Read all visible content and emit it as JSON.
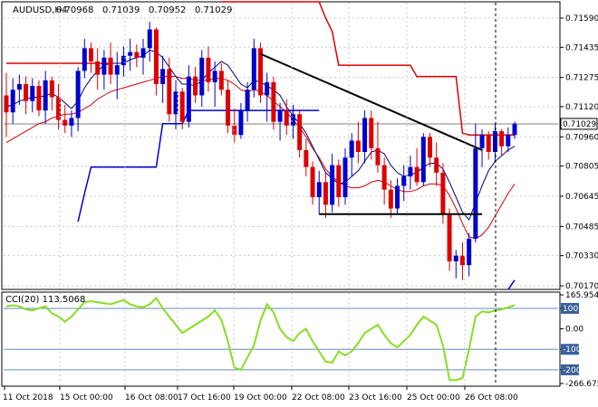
{
  "chart_data": [
    {
      "type": "candlestick",
      "title": "AUDUSD,H4",
      "ohlc_readout": [
        "0.70968",
        "0.71039",
        "0.70952",
        "0.71029"
      ],
      "last_price": "0.71029",
      "ylim": [
        0.7017,
        0.7159
      ],
      "y_ticks": [
        "0.71590",
        "0.71435",
        "0.71275",
        "0.71120",
        "0.70960",
        "0.70805",
        "0.70645",
        "0.70485",
        "0.70330",
        "0.70170"
      ],
      "x_ticks": [
        "11 Oct 2018",
        "15 Oct 00:00",
        "16 Oct 08:00",
        "17 Oct 16:00",
        "19 Oct 00:00",
        "22 Oct 08:00",
        "23 Oct 16:00",
        "25 Oct 00:00",
        "26 Oct 08:00"
      ],
      "colors": {
        "bull": "#0000cc",
        "bear": "#dd0000",
        "fast_ma": "#000080",
        "slow_ma": "#cc0000",
        "red_channel": "#dd0000",
        "blue_channel": "#0000cc",
        "trendline": "#000000"
      },
      "candles": [
        {
          "o": 0.7118,
          "h": 0.713,
          "l": 0.7096,
          "c": 0.7109
        },
        {
          "o": 0.7109,
          "h": 0.7127,
          "l": 0.7103,
          "c": 0.7121
        },
        {
          "o": 0.7121,
          "h": 0.7129,
          "l": 0.7113,
          "c": 0.7124
        },
        {
          "o": 0.7124,
          "h": 0.7128,
          "l": 0.7108,
          "c": 0.7115
        },
        {
          "o": 0.7115,
          "h": 0.7127,
          "l": 0.7109,
          "c": 0.7123
        },
        {
          "o": 0.7123,
          "h": 0.7126,
          "l": 0.7107,
          "c": 0.711
        },
        {
          "o": 0.711,
          "h": 0.7131,
          "l": 0.7103,
          "c": 0.7126
        },
        {
          "o": 0.7126,
          "h": 0.7128,
          "l": 0.711,
          "c": 0.7117
        },
        {
          "o": 0.7117,
          "h": 0.7124,
          "l": 0.71,
          "c": 0.7105
        },
        {
          "o": 0.7105,
          "h": 0.7113,
          "l": 0.7098,
          "c": 0.7102
        },
        {
          "o": 0.7102,
          "h": 0.711,
          "l": 0.7096,
          "c": 0.7106
        },
        {
          "o": 0.7106,
          "h": 0.7133,
          "l": 0.7099,
          "c": 0.7131
        },
        {
          "o": 0.7131,
          "h": 0.7148,
          "l": 0.7127,
          "c": 0.7143
        },
        {
          "o": 0.7143,
          "h": 0.7146,
          "l": 0.713,
          "c": 0.7136
        },
        {
          "o": 0.7136,
          "h": 0.7143,
          "l": 0.7121,
          "c": 0.7129
        },
        {
          "o": 0.7129,
          "h": 0.7142,
          "l": 0.7121,
          "c": 0.7138
        },
        {
          "o": 0.7138,
          "h": 0.7146,
          "l": 0.7124,
          "c": 0.7129
        },
        {
          "o": 0.7129,
          "h": 0.7141,
          "l": 0.7116,
          "c": 0.7134
        },
        {
          "o": 0.7134,
          "h": 0.7144,
          "l": 0.7128,
          "c": 0.7139
        },
        {
          "o": 0.7139,
          "h": 0.7148,
          "l": 0.7131,
          "c": 0.7141
        },
        {
          "o": 0.7141,
          "h": 0.7145,
          "l": 0.7133,
          "c": 0.7138
        },
        {
          "o": 0.7138,
          "h": 0.7148,
          "l": 0.7129,
          "c": 0.7143
        },
        {
          "o": 0.7143,
          "h": 0.7157,
          "l": 0.7136,
          "c": 0.7153
        },
        {
          "o": 0.7153,
          "h": 0.7154,
          "l": 0.7118,
          "c": 0.7124
        },
        {
          "o": 0.7124,
          "h": 0.7139,
          "l": 0.7114,
          "c": 0.7132
        },
        {
          "o": 0.7132,
          "h": 0.7138,
          "l": 0.7104,
          "c": 0.7108
        },
        {
          "o": 0.7108,
          "h": 0.7126,
          "l": 0.71,
          "c": 0.712
        },
        {
          "o": 0.712,
          "h": 0.7122,
          "l": 0.71,
          "c": 0.7104
        },
        {
          "o": 0.7104,
          "h": 0.7134,
          "l": 0.7101,
          "c": 0.7128
        },
        {
          "o": 0.7128,
          "h": 0.7133,
          "l": 0.7114,
          "c": 0.7118
        },
        {
          "o": 0.7118,
          "h": 0.7142,
          "l": 0.7112,
          "c": 0.7138
        },
        {
          "o": 0.7138,
          "h": 0.7144,
          "l": 0.712,
          "c": 0.7125
        },
        {
          "o": 0.7125,
          "h": 0.7136,
          "l": 0.7112,
          "c": 0.7131
        },
        {
          "o": 0.7131,
          "h": 0.7135,
          "l": 0.7118,
          "c": 0.7121
        },
        {
          "o": 0.7121,
          "h": 0.7126,
          "l": 0.7098,
          "c": 0.7102
        },
        {
          "o": 0.7102,
          "h": 0.7111,
          "l": 0.7093,
          "c": 0.7097
        },
        {
          "o": 0.7097,
          "h": 0.7114,
          "l": 0.7095,
          "c": 0.711
        },
        {
          "o": 0.711,
          "h": 0.7125,
          "l": 0.7104,
          "c": 0.7121
        },
        {
          "o": 0.7121,
          "h": 0.7148,
          "l": 0.7117,
          "c": 0.7143
        },
        {
          "o": 0.7143,
          "h": 0.7146,
          "l": 0.7114,
          "c": 0.7118
        },
        {
          "o": 0.7118,
          "h": 0.713,
          "l": 0.7104,
          "c": 0.7125
        },
        {
          "o": 0.7125,
          "h": 0.7128,
          "l": 0.71,
          "c": 0.7104
        },
        {
          "o": 0.7104,
          "h": 0.7114,
          "l": 0.7094,
          "c": 0.711
        },
        {
          "o": 0.711,
          "h": 0.7116,
          "l": 0.7097,
          "c": 0.7102
        },
        {
          "o": 0.7102,
          "h": 0.7113,
          "l": 0.7095,
          "c": 0.7108
        },
        {
          "o": 0.7108,
          "h": 0.711,
          "l": 0.7085,
          "c": 0.7089
        },
        {
          "o": 0.7089,
          "h": 0.7095,
          "l": 0.7075,
          "c": 0.708
        },
        {
          "o": 0.708,
          "h": 0.7083,
          "l": 0.706,
          "c": 0.7064
        },
        {
          "o": 0.7064,
          "h": 0.7078,
          "l": 0.7055,
          "c": 0.7072
        },
        {
          "o": 0.7072,
          "h": 0.7077,
          "l": 0.7053,
          "c": 0.706
        },
        {
          "o": 0.706,
          "h": 0.7087,
          "l": 0.7056,
          "c": 0.7081
        },
        {
          "o": 0.7081,
          "h": 0.7084,
          "l": 0.7059,
          "c": 0.7064
        },
        {
          "o": 0.7064,
          "h": 0.709,
          "l": 0.706,
          "c": 0.7085
        },
        {
          "o": 0.7085,
          "h": 0.7098,
          "l": 0.7075,
          "c": 0.7094
        },
        {
          "o": 0.7094,
          "h": 0.7104,
          "l": 0.7082,
          "c": 0.7088
        },
        {
          "o": 0.7088,
          "h": 0.711,
          "l": 0.7082,
          "c": 0.7106
        },
        {
          "o": 0.7106,
          "h": 0.711,
          "l": 0.7084,
          "c": 0.709
        },
        {
          "o": 0.709,
          "h": 0.7104,
          "l": 0.7077,
          "c": 0.7081
        },
        {
          "o": 0.7081,
          "h": 0.7085,
          "l": 0.706,
          "c": 0.7068
        },
        {
          "o": 0.7068,
          "h": 0.7073,
          "l": 0.7053,
          "c": 0.7058
        },
        {
          "o": 0.7058,
          "h": 0.7074,
          "l": 0.7055,
          "c": 0.707
        },
        {
          "o": 0.707,
          "h": 0.7081,
          "l": 0.7062,
          "c": 0.7075
        },
        {
          "o": 0.7075,
          "h": 0.7086,
          "l": 0.7068,
          "c": 0.708
        },
        {
          "o": 0.708,
          "h": 0.709,
          "l": 0.707,
          "c": 0.7072
        },
        {
          "o": 0.7072,
          "h": 0.7098,
          "l": 0.707,
          "c": 0.7096
        },
        {
          "o": 0.7096,
          "h": 0.7098,
          "l": 0.708,
          "c": 0.7085
        },
        {
          "o": 0.7085,
          "h": 0.7093,
          "l": 0.707,
          "c": 0.7077
        },
        {
          "o": 0.7077,
          "h": 0.7082,
          "l": 0.705,
          "c": 0.7055
        },
        {
          "o": 0.7055,
          "h": 0.7058,
          "l": 0.7025,
          "c": 0.703
        },
        {
          "o": 0.703,
          "h": 0.7036,
          "l": 0.7021,
          "c": 0.7033
        },
        {
          "o": 0.7033,
          "h": 0.704,
          "l": 0.702,
          "c": 0.7028
        },
        {
          "o": 0.7028,
          "h": 0.7045,
          "l": 0.7022,
          "c": 0.7042
        },
        {
          "o": 0.7042,
          "h": 0.7103,
          "l": 0.704,
          "c": 0.709
        },
        {
          "o": 0.709,
          "h": 0.71,
          "l": 0.708,
          "c": 0.7097
        },
        {
          "o": 0.7097,
          "h": 0.7099,
          "l": 0.7084,
          "c": 0.7088
        },
        {
          "o": 0.7088,
          "h": 0.7103,
          "l": 0.7083,
          "c": 0.7099
        },
        {
          "o": 0.7099,
          "h": 0.71,
          "l": 0.7086,
          "c": 0.7091
        },
        {
          "o": 0.7091,
          "h": 0.7101,
          "l": 0.7088,
          "c": 0.7097
        },
        {
          "o": 0.7097,
          "h": 0.7104,
          "l": 0.7095,
          "c": 0.7103
        }
      ],
      "fast_ma": [
        0.7112,
        0.7113,
        0.7115,
        0.7116,
        0.7117,
        0.7117,
        0.7118,
        0.7119,
        0.7117,
        0.7114,
        0.7111,
        0.7115,
        0.7122,
        0.7127,
        0.7131,
        0.7134,
        0.7135,
        0.7135,
        0.7135,
        0.7137,
        0.7138,
        0.7139,
        0.7142,
        0.7141,
        0.7138,
        0.7133,
        0.7128,
        0.7124,
        0.7124,
        0.7123,
        0.7126,
        0.713,
        0.7133,
        0.7136,
        0.7134,
        0.7129,
        0.7124,
        0.7122,
        0.7126,
        0.7125,
        0.7123,
        0.7121,
        0.7118,
        0.7112,
        0.7107,
        0.7103,
        0.7098,
        0.7091,
        0.7084,
        0.7077,
        0.7074,
        0.7071,
        0.7072,
        0.7075,
        0.7078,
        0.7083,
        0.7088,
        0.7089,
        0.7087,
        0.7081,
        0.7077,
        0.7075,
        0.7076,
        0.7077,
        0.708,
        0.7082,
        0.7082,
        0.7079,
        0.7072,
        0.7064,
        0.7056,
        0.7052,
        0.7061,
        0.707,
        0.7078,
        0.7083,
        0.7086,
        0.7089,
        0.7091
      ],
      "slow_ma": [
        0.7093,
        0.7095,
        0.7097,
        0.7099,
        0.7101,
        0.7103,
        0.7104,
        0.7106,
        0.7107,
        0.7108,
        0.7108,
        0.7109,
        0.7111,
        0.7113,
        0.7116,
        0.7118,
        0.712,
        0.7121,
        0.7122,
        0.7123,
        0.7124,
        0.7125,
        0.7126,
        0.7127,
        0.7128,
        0.7128,
        0.7128,
        0.7127,
        0.7127,
        0.7126,
        0.7126,
        0.7126,
        0.7127,
        0.7127,
        0.7126,
        0.7124,
        0.7121,
        0.712,
        0.7121,
        0.712,
        0.7118,
        0.7115,
        0.7112,
        0.7109,
        0.7105,
        0.7101,
        0.7096,
        0.709,
        0.7085,
        0.7079,
        0.7075,
        0.7072,
        0.707,
        0.7069,
        0.7069,
        0.707,
        0.7072,
        0.7073,
        0.7072,
        0.707,
        0.7068,
        0.7067,
        0.7067,
        0.7068,
        0.707,
        0.7071,
        0.7071,
        0.707,
        0.7065,
        0.7058,
        0.705,
        0.7043,
        0.7042,
        0.7044,
        0.7048,
        0.7054,
        0.706,
        0.7066,
        0.7071
      ],
      "red_channel": [
        0.7135,
        0.7135,
        0.7135,
        0.7135,
        0.7135,
        0.7135,
        0.7135,
        0.7135,
        0.7135,
        0.7135,
        0.7135,
        0.7135,
        0.7135,
        0.7135,
        0.7135,
        0.7135,
        0.7135,
        null,
        null,
        null,
        null,
        null,
        null,
        null,
        null,
        null,
        null,
        null,
        null,
        null,
        null,
        null,
        null,
        0.7175,
        0.7175,
        0.7175,
        0.7175,
        0.7175,
        0.7175,
        0.7175,
        0.7175,
        0.7175,
        0.7175,
        0.7175,
        0.7175,
        0.7175,
        0.7175,
        0.7175,
        0.7175,
        0.7159,
        0.7152,
        0.7134,
        0.7134,
        0.7134,
        0.7134,
        0.7134,
        0.7134,
        0.7134,
        0.7134,
        0.7134,
        0.7134,
        0.7134,
        0.7134,
        0.7128,
        0.7128,
        0.7128,
        0.7128,
        0.7128,
        0.7128,
        0.7128,
        0.7098,
        0.7097,
        0.7097,
        0.7097,
        0.7097,
        0.7097,
        0.7097,
        0.7097,
        0.7097
      ],
      "blue_channel": [
        null,
        null,
        null,
        null,
        null,
        null,
        null,
        null,
        null,
        null,
        null,
        0.7051,
        0.7066,
        0.708,
        0.708,
        0.708,
        0.708,
        0.708,
        0.708,
        0.708,
        0.708,
        0.708,
        0.708,
        0.708,
        0.7103,
        0.7103,
        0.7103,
        0.7103,
        0.711,
        0.711,
        0.711,
        0.711,
        0.711,
        0.711,
        0.711,
        0.711,
        0.711,
        0.711,
        0.711,
        0.711,
        0.711,
        0.711,
        0.711,
        0.711,
        0.711,
        0.711,
        0.711,
        0.711,
        0.711,
        null,
        null,
        null,
        null,
        null,
        null,
        null,
        null,
        null,
        null,
        null,
        null,
        null,
        null,
        null,
        null,
        null,
        null,
        null,
        null,
        null,
        null,
        null,
        null,
        null,
        null,
        null,
        null,
        0.7015,
        0.702
      ],
      "trendline": [
        [
          39,
          0.714
        ],
        [
          73,
          0.7089
        ]
      ],
      "support_line": [
        [
          48,
          0.7055
        ],
        [
          73,
          0.7055
        ]
      ]
    },
    {
      "type": "line",
      "title": "CCI(20) 113.5068",
      "ylim": [
        -266.6752,
        165.9549
      ],
      "y_ticks": [
        "165.9549",
        "100",
        "0.00",
        "-100",
        "-200",
        "-266.6752"
      ],
      "levels": [
        100,
        -100,
        -200
      ],
      "color": "#88dd22",
      "values": [
        110,
        115,
        110,
        95,
        90,
        100,
        110,
        75,
        60,
        35,
        60,
        95,
        130,
        135,
        130,
        125,
        120,
        130,
        140,
        120,
        110,
        105,
        120,
        150,
        100,
        60,
        20,
        -20,
        0,
        20,
        40,
        60,
        90,
        45,
        -60,
        -190,
        -200,
        -140,
        -80,
        40,
        120,
        80,
        0,
        -40,
        -60,
        -20,
        0,
        -60,
        -110,
        -160,
        -165,
        -110,
        -130,
        -110,
        -70,
        -20,
        0,
        20,
        -30,
        -70,
        -90,
        -60,
        -30,
        20,
        60,
        40,
        20,
        -80,
        -250,
        -250,
        -240,
        -100,
        60,
        85,
        80,
        90,
        95,
        105,
        115
      ]
    }
  ]
}
